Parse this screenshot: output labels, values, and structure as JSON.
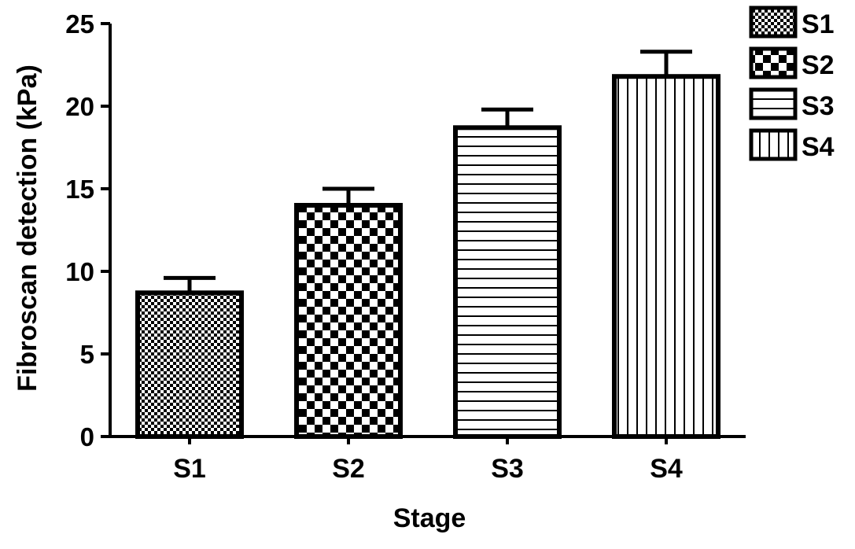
{
  "chart_data": {
    "type": "bar",
    "xlabel": "Stage",
    "ylabel": "Fibroscan detection (kPa)",
    "ylim": [
      0,
      25
    ],
    "yticks": [
      0,
      5,
      10,
      15,
      20,
      25
    ],
    "categories": [
      "S1",
      "S2",
      "S3",
      "S4"
    ],
    "values": [
      8.7,
      14.0,
      18.7,
      21.8
    ],
    "error_upper": [
      0.9,
      1.0,
      1.1,
      1.5
    ],
    "patterns": [
      "fine-checker",
      "coarse-checker",
      "horizontal-lines",
      "vertical-lines"
    ],
    "legend": {
      "position": "top-right",
      "entries": [
        {
          "label": "S1",
          "pattern": "fine-checker"
        },
        {
          "label": "S2",
          "pattern": "coarse-checker"
        },
        {
          "label": "S3",
          "pattern": "horizontal-lines"
        },
        {
          "label": "S4",
          "pattern": "vertical-lines"
        }
      ]
    },
    "grid": false,
    "colors": {
      "ink": "#000000",
      "background": "#ffffff"
    }
  }
}
